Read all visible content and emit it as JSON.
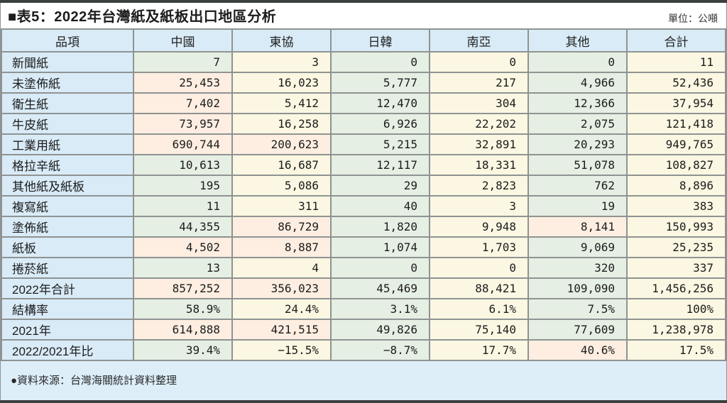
{
  "title": "■表5：2022年台灣紙及紙板出口地區分析",
  "unit_label": "單位：公噸",
  "source_note": "●資料來源：台灣海關統計資料整理",
  "colors": {
    "header_blue": "#d9ebf7",
    "label_blue": "#d9ebf7",
    "cell_green": "#e5efe3",
    "cell_cream": "#fbf7e2",
    "cell_peach_highlight": "#fdeee1",
    "border_gray": "#8f9392",
    "rule_dark": "#3d4040",
    "text": "#1c1c1c"
  },
  "chart_data": {
    "type": "table",
    "title": "2022年台灣紙及紙板出口地區分析",
    "unit": "公噸",
    "columns": [
      "品項",
      "中國",
      "東協",
      "日韓",
      "南亞",
      "其他",
      "合計"
    ],
    "rows": [
      {
        "label": "新聞紙",
        "values": [
          "7",
          "3",
          "0",
          "0",
          "0",
          "11"
        ],
        "highlight_cols": []
      },
      {
        "label": "未塗佈紙",
        "values": [
          "25,453",
          "16,023",
          "5,777",
          "217",
          "4,966",
          "52,436"
        ],
        "highlight_cols": [
          0
        ]
      },
      {
        "label": "衛生紙",
        "values": [
          "7,402",
          "5,412",
          "12,470",
          "304",
          "12,366",
          "37,954"
        ],
        "highlight_cols": [
          0
        ]
      },
      {
        "label": "牛皮紙",
        "values": [
          "73,957",
          "16,258",
          "6,926",
          "22,202",
          "2,075",
          "121,418"
        ],
        "highlight_cols": [
          0
        ]
      },
      {
        "label": "工業用紙",
        "values": [
          "690,744",
          "200,623",
          "5,215",
          "32,891",
          "20,293",
          "949,765"
        ],
        "highlight_cols": [
          0,
          1
        ]
      },
      {
        "label": "格拉辛紙",
        "values": [
          "10,613",
          "16,687",
          "12,117",
          "18,331",
          "51,078",
          "108,827"
        ],
        "highlight_cols": []
      },
      {
        "label": "其他紙及紙板",
        "values": [
          "195",
          "5,086",
          "29",
          "2,823",
          "762",
          "8,896"
        ],
        "highlight_cols": []
      },
      {
        "label": "複寫紙",
        "values": [
          "11",
          "311",
          "40",
          "3",
          "19",
          "383"
        ],
        "highlight_cols": []
      },
      {
        "label": "塗佈紙",
        "values": [
          "44,355",
          "86,729",
          "1,820",
          "9,948",
          "8,141",
          "150,993"
        ],
        "highlight_cols": [
          1,
          4
        ]
      },
      {
        "label": "紙板",
        "values": [
          "4,502",
          "8,887",
          "1,074",
          "1,703",
          "9,069",
          "25,235"
        ],
        "highlight_cols": [
          0,
          1
        ]
      },
      {
        "label": "捲菸紙",
        "values": [
          "13",
          "4",
          "0",
          "0",
          "320",
          "337"
        ],
        "highlight_cols": []
      },
      {
        "label": "2022年合計",
        "values": [
          "857,252",
          "356,023",
          "45,469",
          "88,421",
          "109,090",
          "1,456,256"
        ],
        "highlight_cols": [
          0,
          1
        ]
      },
      {
        "label": "結構率",
        "values": [
          "58.9%",
          "24.4%",
          "3.1%",
          "6.1%",
          "7.5%",
          "100%"
        ],
        "highlight_cols": []
      },
      {
        "label": "2021年",
        "values": [
          "614,888",
          "421,515",
          "49,826",
          "75,140",
          "77,609",
          "1,238,978"
        ],
        "highlight_cols": [
          0,
          1
        ]
      },
      {
        "label": "2022/2021年比",
        "values": [
          "39.4%",
          "−15.5%",
          "−8.7%",
          "17.7%",
          "40.6%",
          "17.5%"
        ],
        "highlight_cols": [
          4
        ]
      }
    ]
  }
}
